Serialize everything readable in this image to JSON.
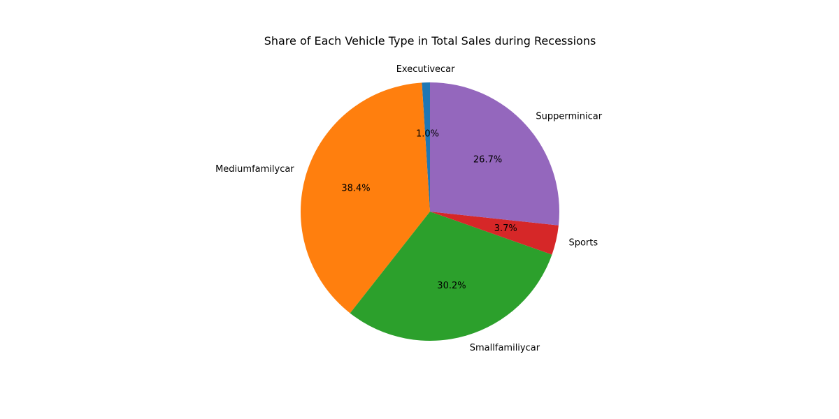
{
  "chart_data": {
    "type": "pie",
    "title": "Share of Each Vehicle Type in Total Sales during Recessions",
    "start_angle_deg": 90,
    "direction": "counterclockwise",
    "slices": [
      {
        "label": "Executivecar",
        "value": 1.0,
        "pct_label": "1.0%",
        "color": "#1f77b4"
      },
      {
        "label": "Mediumfamilycar",
        "value": 38.4,
        "pct_label": "38.4%",
        "color": "#ff7f0e"
      },
      {
        "label": "Smallfamiliycar",
        "value": 30.2,
        "pct_label": "30.2%",
        "color": "#2ca02c"
      },
      {
        "label": "Sports",
        "value": 3.7,
        "pct_label": "3.7%",
        "color": "#d62728"
      },
      {
        "label": "Supperminicar",
        "value": 26.7,
        "pct_label": "26.7%",
        "color": "#9467bd"
      }
    ],
    "legend": "none"
  }
}
